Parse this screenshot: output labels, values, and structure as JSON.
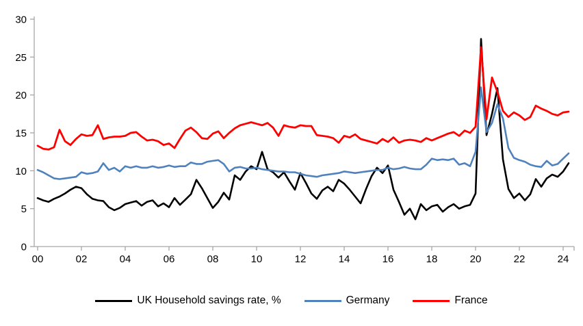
{
  "chart_data": {
    "type": "line",
    "title": "",
    "subtitle": "",
    "frequency": "quarterly",
    "x_start_year": 2000,
    "x_end": "2024-Q2",
    "x_axis": {
      "tick_labels": [
        "00",
        "02",
        "04",
        "06",
        "08",
        "10",
        "12",
        "14",
        "16",
        "18",
        "20",
        "22",
        "24"
      ],
      "years_per_tick": 2,
      "range_years": [
        2000,
        2024.5
      ]
    },
    "y_axis": {
      "ticks": [
        0,
        5,
        10,
        15,
        20,
        25,
        30
      ],
      "range": [
        0,
        30
      ],
      "grid": "off"
    },
    "legend_position": "bottom",
    "axis_color": "#a6a6a6",
    "text_color": "#000000",
    "series": [
      {
        "name": "UK Household savings rate, %",
        "color": "#000000",
        "values": [
          6.4,
          6.1,
          5.9,
          6.3,
          6.6,
          7.0,
          7.5,
          7.9,
          7.7,
          6.9,
          6.3,
          6.1,
          6.0,
          5.2,
          4.8,
          5.1,
          5.6,
          5.8,
          6.0,
          5.4,
          5.9,
          6.1,
          5.3,
          5.7,
          5.2,
          6.4,
          5.5,
          6.2,
          6.9,
          8.8,
          7.7,
          6.4,
          5.1,
          5.9,
          7.1,
          6.2,
          9.4,
          8.8,
          9.9,
          10.6,
          10.2,
          12.5,
          10.2,
          9.8,
          9.1,
          9.8,
          8.6,
          7.5,
          9.7,
          8.4,
          7.0,
          6.3,
          7.4,
          7.9,
          7.3,
          8.8,
          8.3,
          7.5,
          6.6,
          5.7,
          7.6,
          9.3,
          10.4,
          9.7,
          10.7,
          7.5,
          5.9,
          4.2,
          5.0,
          3.6,
          5.6,
          4.8,
          5.3,
          5.5,
          4.6,
          5.2,
          5.6,
          5.0,
          5.3,
          5.5,
          7.0,
          27.4,
          14.7,
          17.5,
          20.9,
          11.5,
          7.6,
          6.4,
          7.0,
          6.1,
          6.9,
          8.9,
          7.9,
          9.0,
          9.5,
          9.2,
          9.9,
          11.0
        ]
      },
      {
        "name": "Germany",
        "color": "#4f81bd",
        "values": [
          10.1,
          9.8,
          9.4,
          9.0,
          8.9,
          9.0,
          9.1,
          9.2,
          9.8,
          9.6,
          9.7,
          9.9,
          11.0,
          10.1,
          10.4,
          9.9,
          10.6,
          10.4,
          10.6,
          10.4,
          10.4,
          10.6,
          10.4,
          10.5,
          10.7,
          10.5,
          10.6,
          10.6,
          11.1,
          10.9,
          10.9,
          11.2,
          11.3,
          11.4,
          10.9,
          9.9,
          10.4,
          10.5,
          10.3,
          10.3,
          10.4,
          10.2,
          10.1,
          10.0,
          9.9,
          9.9,
          9.8,
          9.8,
          9.6,
          9.4,
          9.3,
          9.2,
          9.4,
          9.5,
          9.6,
          9.7,
          9.9,
          9.8,
          9.7,
          9.8,
          9.9,
          10.0,
          10.1,
          10.1,
          10.4,
          10.2,
          10.3,
          10.5,
          10.3,
          10.2,
          10.2,
          10.8,
          11.6,
          11.4,
          11.5,
          11.4,
          11.6,
          10.8,
          11.0,
          10.6,
          12.5,
          21.0,
          15.1,
          16.3,
          18.8,
          16.9,
          13.0,
          11.7,
          11.4,
          11.2,
          10.8,
          10.6,
          10.5,
          11.3,
          10.7,
          10.9,
          11.6,
          12.3
        ]
      },
      {
        "name": "France",
        "color": "#ff0000",
        "values": [
          13.3,
          12.9,
          12.8,
          13.1,
          15.4,
          13.9,
          13.4,
          14.2,
          14.8,
          14.6,
          14.7,
          16.0,
          14.2,
          14.4,
          14.5,
          14.5,
          14.6,
          15.0,
          15.1,
          14.5,
          14.0,
          14.1,
          13.9,
          13.4,
          13.6,
          13.0,
          14.2,
          15.3,
          15.7,
          15.1,
          14.3,
          14.2,
          14.9,
          15.2,
          14.3,
          15.0,
          15.6,
          16.0,
          16.2,
          16.4,
          16.2,
          16.0,
          16.3,
          15.7,
          14.6,
          16.0,
          15.8,
          15.7,
          16.0,
          15.9,
          15.9,
          14.7,
          14.6,
          14.5,
          14.3,
          13.7,
          14.6,
          14.4,
          14.8,
          14.2,
          14.0,
          13.8,
          13.6,
          14.2,
          13.8,
          14.4,
          13.7,
          14.0,
          14.1,
          14.0,
          13.8,
          14.3,
          14.0,
          14.3,
          14.6,
          14.9,
          15.1,
          14.6,
          15.3,
          15.0,
          15.8,
          26.3,
          16.8,
          22.3,
          20.4,
          17.9,
          17.1,
          17.7,
          17.3,
          16.7,
          17.1,
          18.6,
          18.2,
          17.9,
          17.5,
          17.3,
          17.7,
          17.8
        ]
      }
    ]
  }
}
